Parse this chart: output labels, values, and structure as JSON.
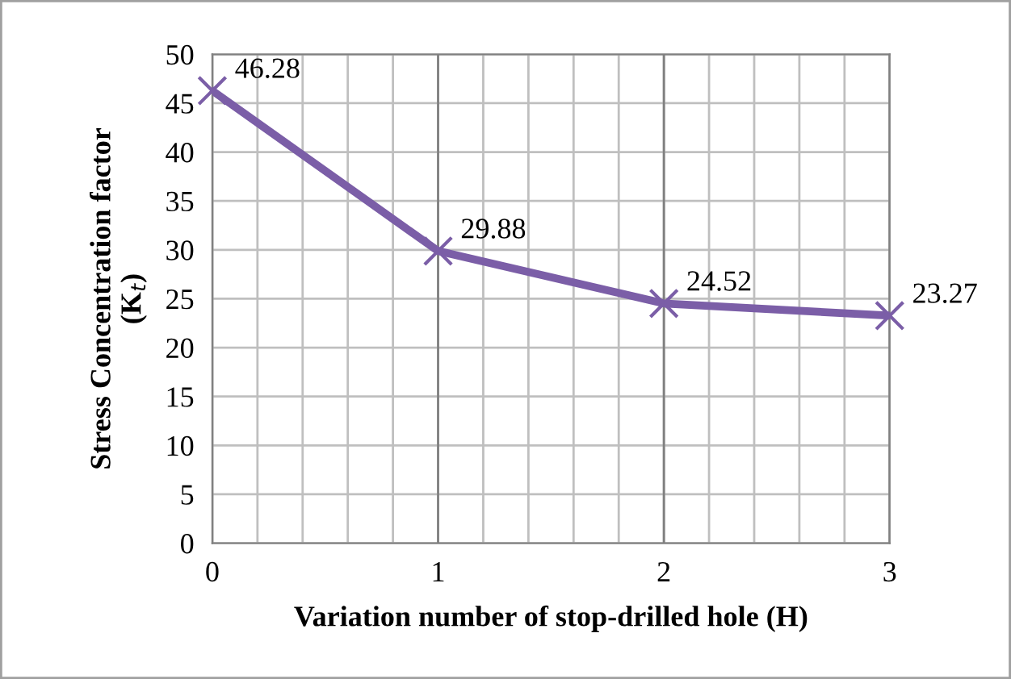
{
  "chart_data": {
    "type": "line",
    "xlabel": "Variation number of stop-drilled hole (H)",
    "ylabel": "Stress Concentration factor\n(K$_{t}$)",
    "x": [
      0,
      1,
      2,
      3
    ],
    "series": [
      {
        "color": "#7b5ea7",
        "values": [
          46.28,
          29.88,
          24.52,
          23.27
        ]
      }
    ],
    "xlim": [
      0,
      3
    ],
    "xticks": [
      0,
      {
        "value": 0.2,
        "label": null
      },
      {
        "value": 0.4,
        "label": null
      },
      {
        "value": 0.6,
        "label": null
      },
      {
        "value": 0.8,
        "label": null
      },
      1,
      {
        "value": 1.2,
        "label": null
      },
      {
        "value": 1.4,
        "label": null
      },
      {
        "value": 1.6,
        "label": null
      },
      {
        "value": 1.8,
        "label": null
      },
      2,
      {
        "value": 2.2,
        "label": null
      },
      {
        "value": 2.4,
        "label": null
      },
      {
        "value": 2.6,
        "label": null
      },
      {
        "value": 2.8,
        "label": null
      },
      3
    ],
    "ylim": [
      0,
      50
    ],
    "yticks": [
      0,
      5,
      10,
      15,
      20,
      25,
      30,
      35,
      40,
      45,
      50
    ],
    "grid": true,
    "marker": "cross",
    "line_style": "solid",
    "data_labels": true
  }
}
